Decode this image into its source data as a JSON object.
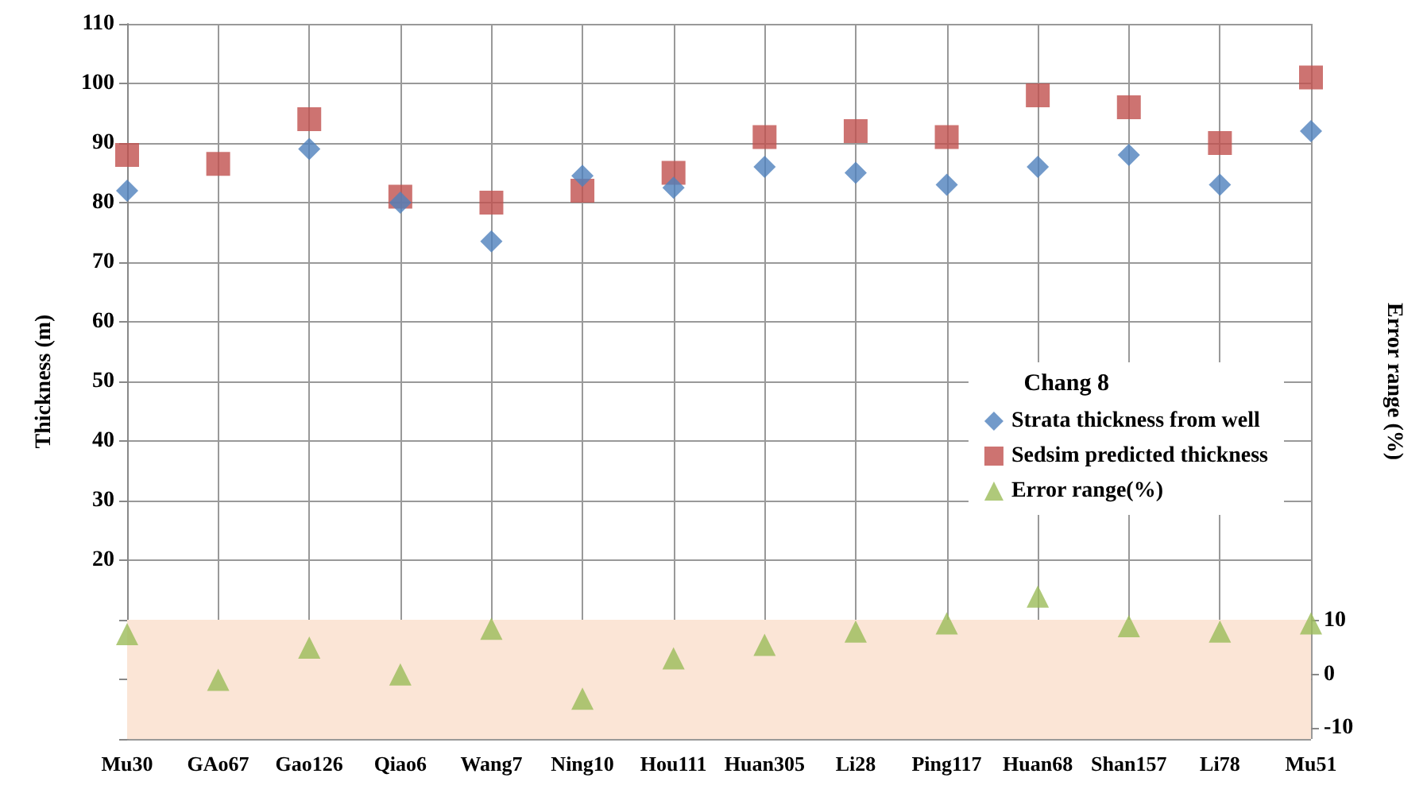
{
  "chart_data": {
    "type": "scatter",
    "ylabel": "Thickness (m)",
    "y2label": "Error range (%)",
    "legend_title": "Chang 8",
    "categories": [
      "Mu30",
      "GAo67",
      "Gao126",
      "Qiao6",
      "Wang7",
      "Ning10",
      "Hou111",
      "Huan305",
      "Li28",
      "Ping117",
      "Huan68",
      "Shan157",
      "Li78",
      "Mu51"
    ],
    "series": [
      {
        "name": "Strata thickness from well",
        "color": "#4f81bd",
        "marker": "diamond",
        "values": [
          82,
          null,
          89,
          80,
          73.5,
          84.5,
          82.5,
          86,
          85,
          83,
          86,
          88,
          83,
          92
        ]
      },
      {
        "name": "Sedsim predicted thickness",
        "color": "#c0504d",
        "marker": "square",
        "values": [
          88,
          86.5,
          94,
          81,
          80,
          82,
          85,
          91,
          92,
          91,
          98,
          96,
          90,
          101
        ]
      },
      {
        "name": "Error range(%)",
        "color": "#9bbb59",
        "marker": "triangle",
        "axis": "y2",
        "values": [
          7.5,
          -1,
          5,
          0,
          8.5,
          -4.5,
          3,
          5.5,
          8,
          9.5,
          14.5,
          9,
          8,
          9.5
        ]
      }
    ],
    "ylim": [
      -10,
      110
    ],
    "yticks": [
      {
        "value": -10,
        "label": null
      },
      {
        "value": 0,
        "label": null
      },
      {
        "value": 10,
        "label": null
      },
      20,
      30,
      40,
      50,
      60,
      70,
      80,
      90,
      100,
      110
    ],
    "y2lim": [
      -12,
      121
    ],
    "y2ticks": [
      -10,
      0,
      10
    ],
    "bands": [
      {
        "axis": "y",
        "from": -10,
        "to": 10,
        "color": "#fbe5d6"
      }
    ],
    "grid": true,
    "legend": "right"
  }
}
